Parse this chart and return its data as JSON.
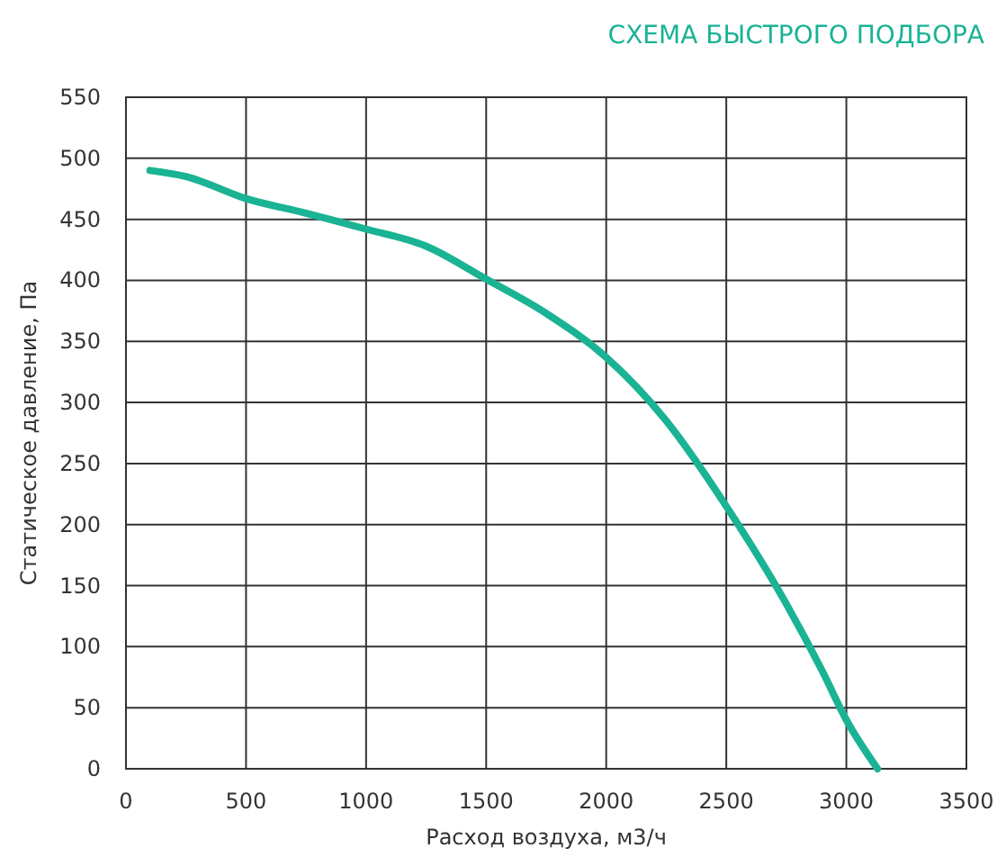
{
  "chart_data": {
    "type": "line",
    "title": "СХЕМА БЫСТРОГО ПОДБОРА",
    "xlabel": "Расход воздуха, м3/ч",
    "ylabel": "Статическое давление, Па",
    "x": [
      100,
      250,
      500,
      750,
      1000,
      1250,
      1500,
      1750,
      2000,
      2250,
      2500,
      2750,
      2900,
      3000,
      3130
    ],
    "series": [
      {
        "color": "#1ab394",
        "values": [
          490,
          485,
          467,
          455,
          442,
          428,
          401,
          373,
          337,
          285,
          215,
          135,
          80,
          40,
          0
        ]
      }
    ],
    "xlim": [
      0,
      3500
    ],
    "xticks": [
      0,
      500,
      1000,
      1500,
      2000,
      2500,
      3000,
      3500
    ],
    "ylim": [
      0,
      550
    ],
    "yticks": [
      0,
      50,
      100,
      150,
      200,
      250,
      300,
      350,
      400,
      450,
      500,
      550
    ],
    "grid": true,
    "marker": "none",
    "line_style": "solid"
  }
}
